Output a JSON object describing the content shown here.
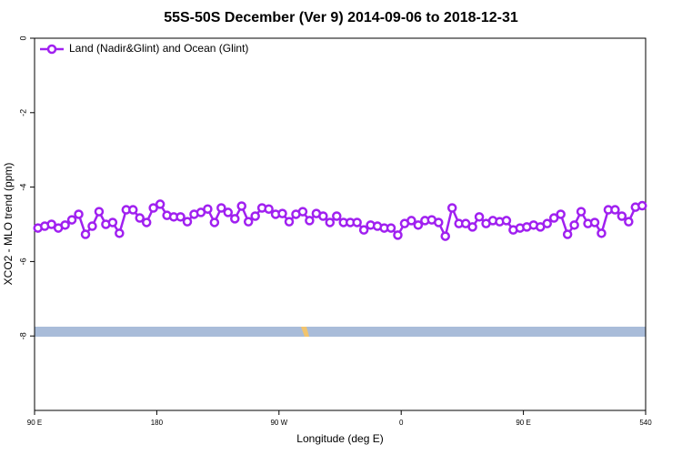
{
  "chart_data": {
    "type": "line",
    "title": "55S-50S December (Ver 9)   2014-09-06 to 2018-12-31",
    "x_label": "Longitude (deg E)",
    "y_label": "XCO2 - MLO trend (ppm)",
    "xlim": [
      90,
      540
    ],
    "xticks": [
      {
        "value": 90,
        "label": "90 E"
      },
      180,
      {
        "value": 270,
        "label": "90 W"
      },
      {
        "value": 360,
        "label": "0"
      },
      {
        "value": 450,
        "label": "90 E"
      },
      540
    ],
    "ylim": [
      -10,
      0
    ],
    "yticks": [
      0,
      -2,
      -4,
      -6,
      -8
    ],
    "legend": "top-left",
    "series": [
      {
        "name": "Land (Nadir&Glint) and Ocean (Glint)",
        "color": "#a020f0",
        "x": [
          92.5,
          97.5,
          102.5,
          107.5,
          112.5,
          117.5,
          122.5,
          127.5,
          132.5,
          137.5,
          142.5,
          147.5,
          152.5,
          157.5,
          162.5,
          167.5,
          172.5,
          177.5,
          182.5,
          187.5,
          192.5,
          197.5,
          202.5,
          207.5,
          212.5,
          217.5,
          222.5,
          227.5,
          232.5,
          237.5,
          242.5,
          247.5,
          252.5,
          257.5,
          262.5,
          267.5,
          272.5,
          277.5,
          282.5,
          287.5,
          292.5,
          297.5,
          302.5,
          307.5,
          312.5,
          317.5,
          322.5,
          327.5,
          332.5,
          337.5,
          342.5,
          347.5,
          352.5,
          357.5,
          362.5,
          367.5,
          372.5,
          377.5,
          382.5,
          387.5,
          392.5,
          397.5,
          402.5,
          407.5,
          412.5,
          417.5,
          422.5,
          427.5,
          432.5,
          437.5,
          442.5,
          447.5,
          452.5,
          457.5,
          462.5,
          467.5,
          472.5,
          477.5,
          482.5,
          487.5,
          492.5,
          497.5,
          502.5,
          507.5,
          512.5,
          517.5,
          522.5,
          527.5,
          532.5,
          537.5
        ],
        "values": [
          -5.1,
          -5.05,
          -5.0,
          -5.1,
          -5.02,
          -4.88,
          -4.73,
          -5.27,
          -5.05,
          -4.66,
          -5.0,
          -4.95,
          -5.24,
          -4.61,
          -4.61,
          -4.83,
          -4.95,
          -4.56,
          -4.46,
          -4.76,
          -4.8,
          -4.8,
          -4.93,
          -4.73,
          -4.68,
          -4.59,
          -4.95,
          -4.56,
          -4.68,
          -4.85,
          -4.51,
          -4.93,
          -4.78,
          -4.56,
          -4.59,
          -4.73,
          -4.71,
          -4.93,
          -4.73,
          -4.66,
          -4.9,
          -4.71,
          -4.78,
          -4.95,
          -4.78,
          -4.95,
          -4.95,
          -4.95,
          -5.15,
          -5.02,
          -5.05,
          -5.1,
          -5.1,
          -5.29,
          -4.98,
          -4.9,
          -5.02,
          -4.9,
          -4.88,
          -4.95,
          -5.32,
          -4.56,
          -4.98,
          -4.98,
          -5.07,
          -4.8,
          -4.98,
          -4.9,
          -4.93,
          -4.9,
          -5.15,
          -5.1,
          -5.07,
          -5.02,
          -5.07,
          -4.98,
          -4.83,
          -4.73,
          -5.27,
          -5.02,
          -4.66,
          -4.98,
          -4.95,
          -5.24,
          -4.61,
          -4.61,
          -4.78,
          -4.93,
          -4.54,
          -4.5
        ]
      }
    ]
  }
}
